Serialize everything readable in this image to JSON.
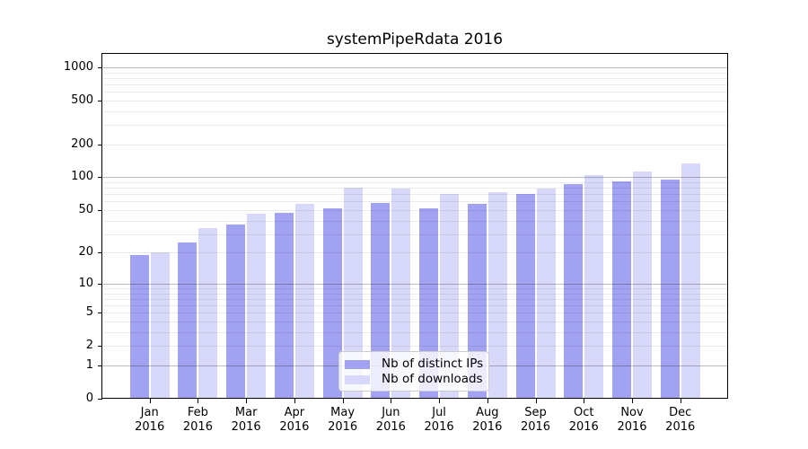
{
  "title": "systemPipeRdata 2016",
  "chart_data": {
    "type": "bar",
    "title": "systemPipeRdata 2016",
    "categories": [
      "Jan",
      "Feb",
      "Mar",
      "Apr",
      "May",
      "Jun",
      "Jul",
      "Aug",
      "Sep",
      "Oct",
      "Nov",
      "Dec"
    ],
    "year": "2016",
    "series": [
      {
        "name": "Nb of distinct IPs",
        "color": "#a2a2f2",
        "values": [
          19,
          25,
          37,
          47,
          52,
          58,
          52,
          57,
          70,
          87,
          91,
          95
        ]
      },
      {
        "name": "Nb of downloads",
        "color": "#d8d8fa",
        "values": [
          20,
          34,
          46,
          57,
          81,
          79,
          70,
          73,
          79,
          104,
          113,
          135
        ]
      }
    ],
    "xlabel": "",
    "ylabel": "",
    "yscale": "log1p",
    "ylim": [
      0,
      1300
    ],
    "yticks": [
      0,
      1,
      2,
      5,
      10,
      20,
      50,
      100,
      200,
      500,
      1000
    ],
    "grid": true,
    "grid_major_at": [
      1,
      10,
      100,
      1000
    ],
    "legend_position": "lower-center"
  },
  "colors": {
    "background": "#ffffff",
    "bar_distinct_ips": "#a2a2f2",
    "bar_downloads": "#d8d8fa",
    "grid_major": "#c3c3c3",
    "grid_minor": "#eaeaea",
    "frame": "#000000",
    "legend_border": "#cccccc"
  }
}
